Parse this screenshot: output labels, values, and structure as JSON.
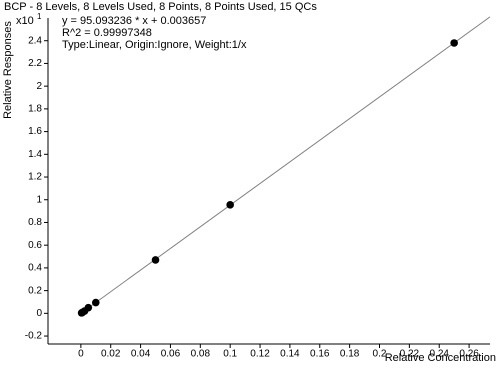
{
  "chart_data": {
    "type": "scatter",
    "title": "BCP - 8 Levels, 8 Levels Used, 8 Points, 8 Points Used, 15 QCs",
    "annotations": [
      "y = 95.093236 * x  + 0.003657",
      "R^2 = 0.99997348",
      "Type:Linear, Origin:Ignore, Weight:1/x"
    ],
    "y_multiplier": "x10",
    "y_multiplier_exponent": "1",
    "xlabel": "Relative Concentration",
    "ylabel": "Relative Responses",
    "xlim": [
      -0.022,
      0.274
    ],
    "ylim": [
      -0.27,
      2.6
    ],
    "xticks": [
      0,
      0.02,
      0.04,
      0.06,
      0.08,
      0.1,
      0.12,
      0.14,
      0.16,
      0.18,
      0.2,
      0.22,
      0.24,
      0.26
    ],
    "yticks": [
      -0.2,
      0,
      0.2,
      0.4,
      0.6,
      0.8,
      1,
      1.2,
      1.4,
      1.6,
      1.8,
      2,
      2.2,
      2.4
    ],
    "series": [
      {
        "color": "#000000",
        "x": [
          0.0005,
          0.001,
          0.0025,
          0.005,
          0.01,
          0.05,
          0.1,
          0.25
        ],
        "values": [
          0.004,
          0.008,
          0.02,
          0.05,
          0.095,
          0.47,
          0.955,
          2.38
        ]
      }
    ],
    "fit_line": {
      "color": "#808080",
      "x": [
        -0.0005,
        0.274
      ],
      "values": [
        -0.005,
        2.61
      ]
    }
  }
}
